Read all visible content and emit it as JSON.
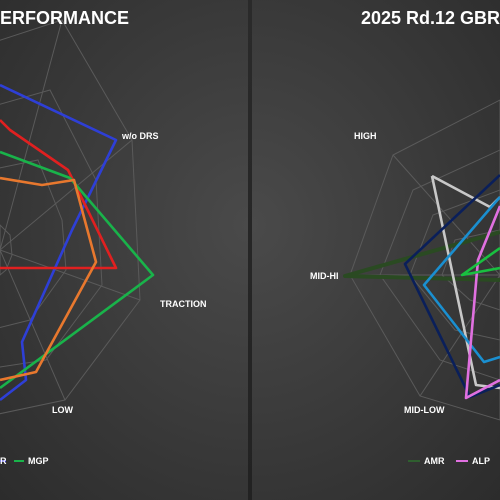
{
  "chart_data": [
    {
      "type": "radar",
      "title": "ERFORMANCE",
      "axes": [
        "w/o DRS",
        "TRACTION",
        "LOW"
      ],
      "legend": [
        "R",
        "MGP"
      ],
      "legend_colors": [
        "#2e2ed0",
        "#19b34a"
      ],
      "grid": true,
      "series": [
        {
          "color": "#2e3fd6",
          "values": {
            "w/o DRS": 1.0,
            "TRACTION": 0.0,
            "LOW": 0.0
          }
        },
        {
          "color": "#e02020",
          "values": {
            "w/o DRS": 0.5,
            "TRACTION": 0.73,
            "LOW": 0.0
          }
        },
        {
          "color": "#19b34a",
          "values": {
            "w/o DRS": 0.5,
            "TRACTION": 1.0,
            "LOW": 0.32
          }
        },
        {
          "color": "#e8782e",
          "values": {
            "w/o DRS": 0.41,
            "TRACTION": 0.6,
            "LOW": 0.85
          }
        }
      ]
    },
    {
      "type": "radar",
      "title": "2025 Rd.12 GBR",
      "axes": [
        "HIGH",
        "MID-HI",
        "MID-LOW"
      ],
      "legend": [
        "AMR",
        "ALP"
      ],
      "legend_colors": [
        "#2f5f2f",
        "#e070e0"
      ],
      "grid": true,
      "series": [
        {
          "color": "#2a4a22",
          "values": {
            "HIGH": 0.0,
            "MID-HI": 1.0,
            "MID-LOW": 0.0
          }
        },
        {
          "color": "#c8c8c8",
          "values": {
            "HIGH": 0.45,
            "MID-HI": 0.0,
            "MID-LOW": 0.25
          }
        },
        {
          "color": "#0a1f5a",
          "values": {
            "HIGH": 0.0,
            "MID-HI": 0.5,
            "MID-LOW": 0.55
          }
        },
        {
          "color": "#1a8fd0",
          "values": {
            "HIGH": 0.0,
            "MID-HI": 0.43,
            "MID-LOW": 0.0
          }
        },
        {
          "color": "#e070e0",
          "values": {
            "HIGH": 0.0,
            "MID-HI": 0.0,
            "MID-LOW": 0.0
          }
        },
        {
          "color": "#19c040",
          "values": {
            "HIGH": 0.0,
            "MID-HI": 0.2,
            "MID-LOW": 0.0
          }
        }
      ]
    }
  ]
}
